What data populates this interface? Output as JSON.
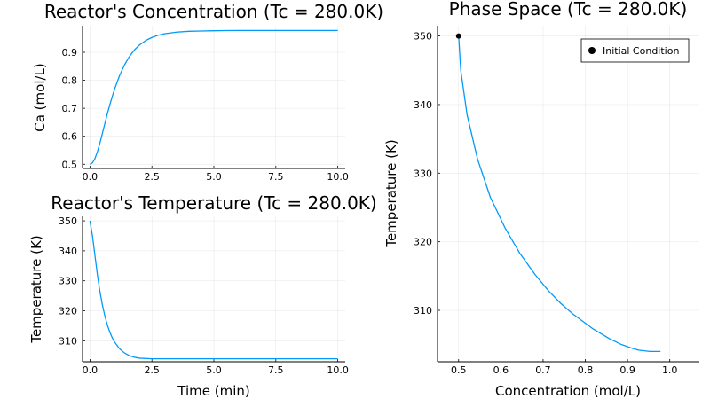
{
  "chart_data": [
    {
      "id": "concentration",
      "type": "line",
      "title": "Reactor's Concentration (Tc = 280.0K)",
      "xlabel": "",
      "ylabel": "Ca (mol/L)",
      "xlim": [
        -0.3,
        10.3
      ],
      "ylim": [
        0.485,
        0.995
      ],
      "xticks": [
        0.0,
        2.5,
        5.0,
        7.5,
        10.0
      ],
      "xtick_labels": [
        "0.0",
        "2.5",
        "5.0",
        "7.5",
        "10.0"
      ],
      "yticks": [
        0.5,
        0.6,
        0.7,
        0.8,
        0.9
      ],
      "ytick_labels": [
        "0.5",
        "0.6",
        "0.7",
        "0.8",
        "0.9"
      ],
      "grid": true,
      "legend": false,
      "series": [
        {
          "color": "#009AFA",
          "x": [
            0,
            0.1,
            0.2,
            0.3,
            0.4,
            0.5,
            0.6,
            0.7,
            0.8,
            0.9,
            1.0,
            1.2,
            1.4,
            1.6,
            1.8,
            2.0,
            2.25,
            2.5,
            2.75,
            3.0,
            3.5,
            4.0,
            4.5,
            5.0,
            6.0,
            7.0,
            8.0,
            9.0,
            10.0
          ],
          "y": [
            0.5,
            0.505,
            0.52,
            0.545,
            0.575,
            0.61,
            0.645,
            0.68,
            0.712,
            0.742,
            0.77,
            0.818,
            0.856,
            0.886,
            0.909,
            0.926,
            0.942,
            0.953,
            0.961,
            0.966,
            0.972,
            0.975,
            0.976,
            0.977,
            0.978,
            0.978,
            0.978,
            0.978,
            0.978
          ]
        }
      ]
    },
    {
      "id": "temperature",
      "type": "line",
      "title": "Reactor's Temperature (Tc = 280.0K)",
      "xlabel": "Time (min)",
      "ylabel": "Temperature (K)",
      "xlim": [
        -0.3,
        10.3
      ],
      "ylim": [
        303,
        351.5
      ],
      "xticks": [
        0.0,
        2.5,
        5.0,
        7.5,
        10.0
      ],
      "xtick_labels": [
        "0.0",
        "2.5",
        "5.0",
        "7.5",
        "10.0"
      ],
      "yticks": [
        310,
        320,
        330,
        340,
        350
      ],
      "ytick_labels": [
        "310",
        "320",
        "330",
        "340",
        "350"
      ],
      "grid": true,
      "legend": false,
      "series": [
        {
          "color": "#009AFA",
          "x": [
            0,
            0.1,
            0.2,
            0.3,
            0.4,
            0.5,
            0.6,
            0.7,
            0.8,
            0.9,
            1.0,
            1.2,
            1.4,
            1.6,
            1.8,
            2.0,
            2.5,
            3.0,
            4.0,
            5.0,
            7.5,
            10.0
          ],
          "y": [
            350,
            345,
            338.5,
            332,
            326.5,
            322,
            318.3,
            315.3,
            312.9,
            311.0,
            309.5,
            307.3,
            305.9,
            305.0,
            304.5,
            304.2,
            304.0,
            304.0,
            304.0,
            304.0,
            304.0,
            304.0
          ]
        }
      ]
    },
    {
      "id": "phase",
      "type": "line",
      "title": "Phase Space (Tc = 280.0K)",
      "xlabel": "Concentration (mol/L)",
      "ylabel": "Temperature (K)",
      "xlim": [
        0.45,
        1.07
      ],
      "ylim": [
        302.5,
        351.5
      ],
      "xticks": [
        0.5,
        0.6,
        0.7,
        0.8,
        0.9,
        1.0
      ],
      "xtick_labels": [
        "0.5",
        "0.6",
        "0.7",
        "0.8",
        "0.9",
        "1.0"
      ],
      "yticks": [
        310,
        320,
        330,
        340,
        350
      ],
      "ytick_labels": [
        "310",
        "320",
        "330",
        "340",
        "350"
      ],
      "grid": true,
      "legend": "top-right",
      "series": [
        {
          "color": "#009AFA",
          "x": [
            0.5,
            0.505,
            0.52,
            0.545,
            0.575,
            0.61,
            0.645,
            0.68,
            0.712,
            0.742,
            0.77,
            0.818,
            0.856,
            0.886,
            0.909,
            0.926,
            0.953,
            0.966,
            0.972,
            0.978
          ],
          "y": [
            350,
            345,
            338.5,
            332.0,
            326.5,
            322.0,
            318.3,
            315.3,
            312.9,
            311.0,
            309.5,
            307.3,
            305.9,
            305.0,
            304.5,
            304.2,
            304.0,
            304.0,
            304.0,
            304.0
          ]
        }
      ],
      "points": [
        {
          "name": "Initial Condition",
          "x": 0.5,
          "y": 350,
          "color": "#000000"
        }
      ]
    }
  ]
}
